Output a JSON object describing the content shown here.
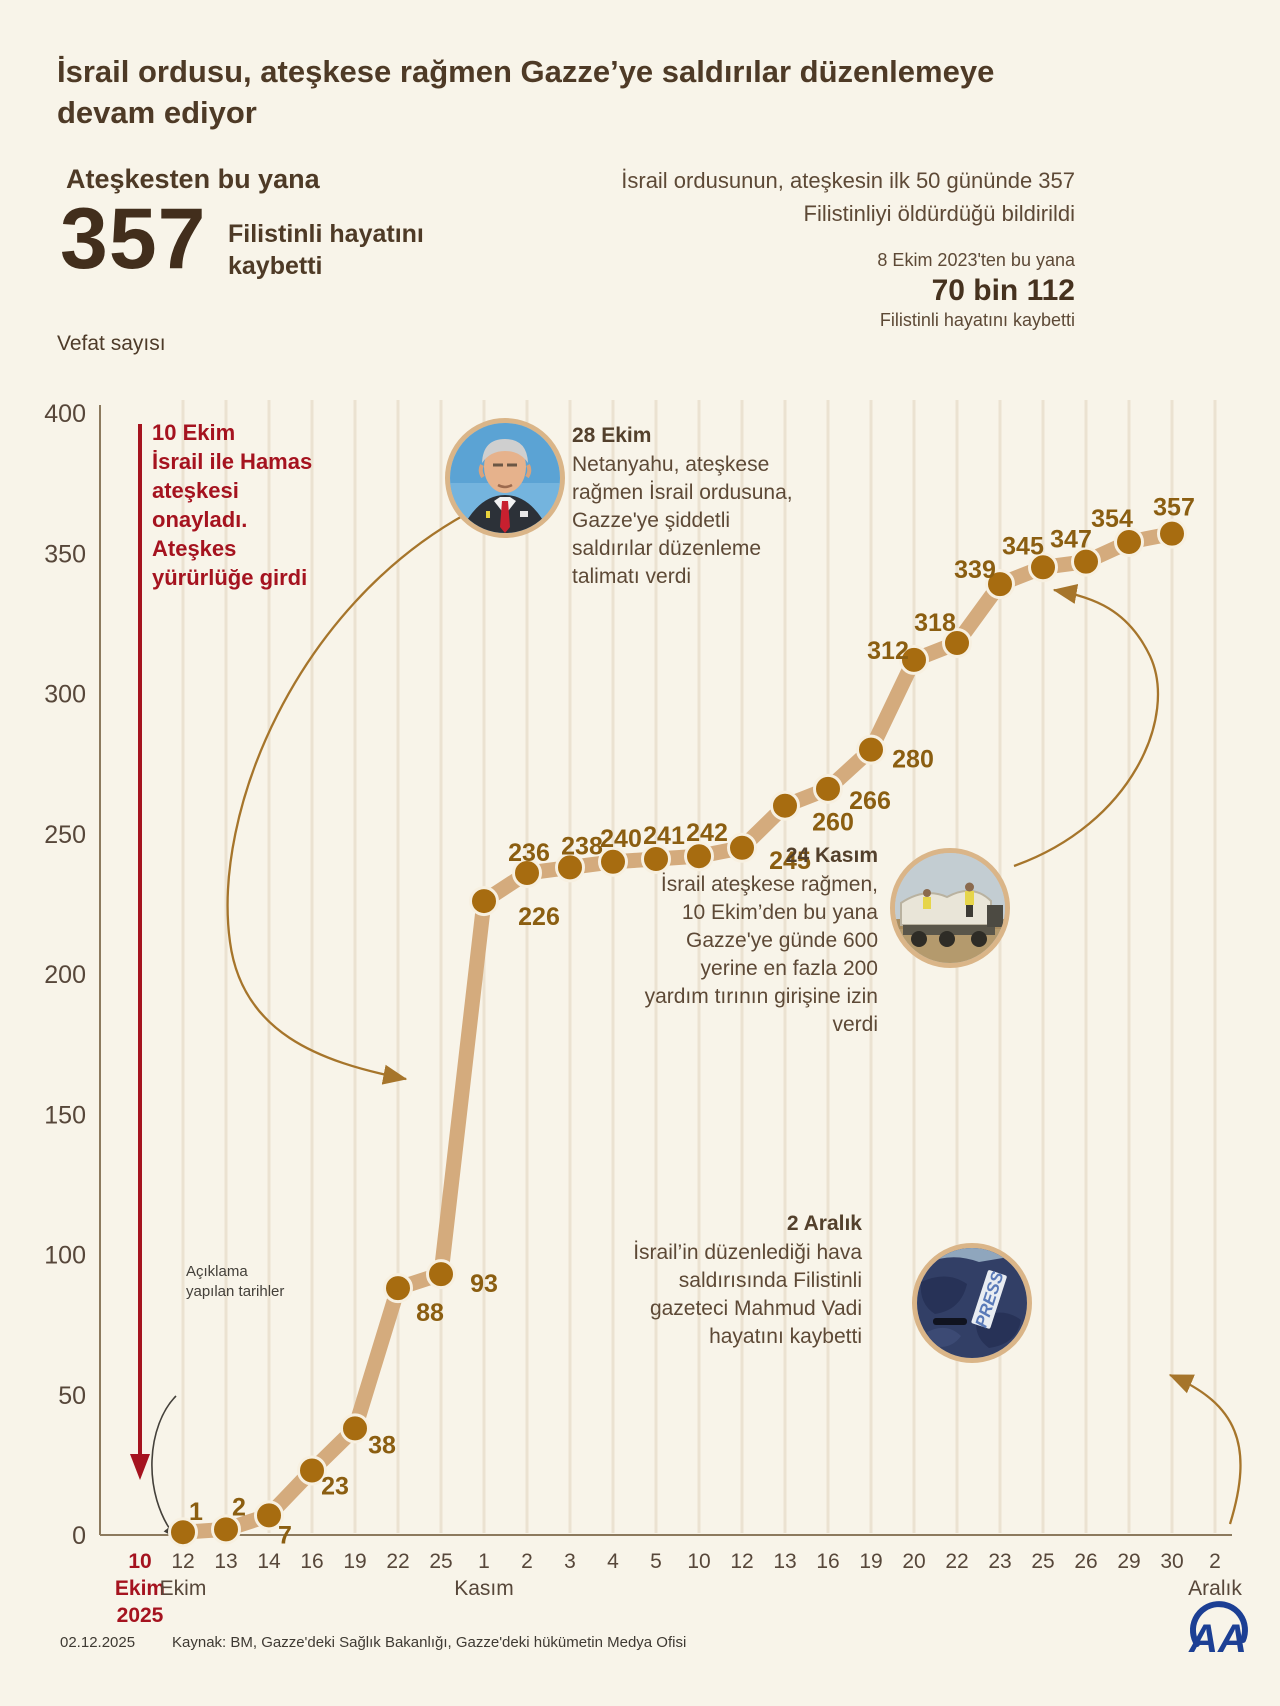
{
  "header": {
    "title": "İsrail ordusu, ateşkese rağmen Gazze’ye saldırılar düzenlemeye devam ediyor",
    "stat": {
      "label_top": "Ateşkesten bu yana",
      "value": "357",
      "caption": "Filistinli hayatını kaybetti"
    },
    "right_note": "İsrail ordusunun, ateşkesin ilk 50 gününde 357 Filistinliyi öldürdüğü bildirildi",
    "since": {
      "line1": "8 Ekim 2023'ten bu yana",
      "value": "70 bin 112",
      "line2": "Filistinli hayatını kaybetti"
    }
  },
  "chart_data": {
    "type": "line",
    "title": "Vefat sayısı",
    "ylabel": "Vefat sayısı",
    "xlabel": "",
    "ylim": [
      0,
      400
    ],
    "yticks": [
      0,
      50,
      100,
      150,
      200,
      250,
      300,
      350,
      400
    ],
    "grid": "vertical",
    "legend": "none",
    "categories": [
      {
        "day": "10",
        "month": "Ekim",
        "year": "2025",
        "red": true
      },
      {
        "day": "12",
        "month": "Ekim"
      },
      {
        "day": "13"
      },
      {
        "day": "14"
      },
      {
        "day": "16"
      },
      {
        "day": "19"
      },
      {
        "day": "22"
      },
      {
        "day": "25"
      },
      {
        "day": "1",
        "month": "Kasım"
      },
      {
        "day": "2"
      },
      {
        "day": "3"
      },
      {
        "day": "4"
      },
      {
        "day": "5"
      },
      {
        "day": "10"
      },
      {
        "day": "12"
      },
      {
        "day": "13"
      },
      {
        "day": "16"
      },
      {
        "day": "19"
      },
      {
        "day": "20"
      },
      {
        "day": "22"
      },
      {
        "day": "23"
      },
      {
        "day": "25"
      },
      {
        "day": "26"
      },
      {
        "day": "29"
      },
      {
        "day": "30"
      },
      {
        "day": "2",
        "month": "Aralık"
      }
    ],
    "series": [
      {
        "name": "Vefat sayısı",
        "values": [
          null,
          1,
          2,
          7,
          23,
          38,
          88,
          93,
          226,
          236,
          238,
          240,
          241,
          242,
          245,
          260,
          266,
          280,
          312,
          318,
          339,
          345,
          347,
          354,
          357,
          null
        ]
      }
    ]
  },
  "annotations": {
    "ceasefire": {
      "date": "10 Ekim",
      "text": "İsrail ile Hamas ateşkesi onayladı. Ateşkes yürürlüğe girdi"
    },
    "oct28": {
      "date": "28 Ekim",
      "text": "Netanyahu, ateşkese rağmen İsrail ordusuna, Gazze'ye şiddetli saldırılar düzenleme talimatı verdi"
    },
    "nov24": {
      "date": "24 Kasım",
      "text": "İsrail ateşkese rağmen, 10 Ekim’den bu yana Gazze'ye günde 600 yerine en fazla 200 yardım tırının girişine izin verdi"
    },
    "dec2": {
      "date": "2 Aralık",
      "text": "İsrail’in düzenlediği hava saldırısında Filistinli gazeteci Mahmud Vadi hayatını kaybetti",
      "press_label": "PRESS"
    },
    "dates_note": "Açıklama yapılan tarihler"
  },
  "footer": {
    "date": "02.12.2025",
    "source": "Kaynak: BM, Gazze'deki Sağlık Bakanlığı, Gazze'deki hükümetin Medya Ofisi",
    "logo": "AA"
  },
  "colors": {
    "background": "#f8f4e9",
    "title_brown": "#4e3a26",
    "stat_brown": "#422e1c",
    "red_accent": "#a5131f",
    "line_tan": "#d4ab7d",
    "point_brown": "#a76c10",
    "value_label_gold": "#8b5e11",
    "arrow_brown": "#a6752b",
    "grid": "#ebe2d1",
    "logo_blue": "#1c3f94"
  }
}
